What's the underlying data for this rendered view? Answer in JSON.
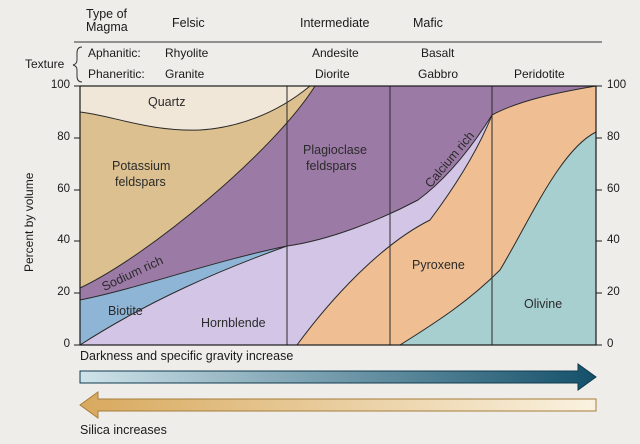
{
  "header": {
    "type_of_magma": "Type of Magma",
    "type_of_magma_line1": "Type of",
    "type_of_magma_line2": "Magma",
    "felsic": "Felsic",
    "intermediate": "Intermediate",
    "mafic": "Mafic"
  },
  "texture": {
    "label": "Texture",
    "aphanitic": {
      "label": "Aphanitic:",
      "felsic": "Rhyolite",
      "intermediate": "Andesite",
      "mafic": "Basalt"
    },
    "phaneritic": {
      "label": "Phaneritic:",
      "felsic": "Granite",
      "intermediate": "Diorite",
      "mafic": "Gabbro",
      "ultramafic": "Peridotite"
    }
  },
  "axis": {
    "ylabel": "Percent by volume",
    "ticks": [
      "0",
      "20",
      "40",
      "60",
      "80",
      "100"
    ]
  },
  "regions": {
    "quartz": "Quartz",
    "potassium_line1": "Potassium",
    "potassium_line2": "feldspars",
    "sodium": "Sodium rich",
    "plagioclase_line1": "Plagioclase",
    "plagioclase_line2": "feldspars",
    "calcium": "Calcium rich",
    "biotite": "Biotite",
    "hornblende": "Hornblende",
    "pyroxene": "Pyroxene",
    "olivine": "Olivine"
  },
  "arrows": {
    "darkness": "Darkness and specific gravity increase",
    "silica": "Silica increases"
  },
  "colors": {
    "quartz": "#f1e7d9",
    "potassium": "#dcc08f",
    "feldspar": "#9c7aa6",
    "biotite": "#8fb5d6",
    "hornblende": "#d2c5e6",
    "pyroxene": "#efbe93",
    "olivine": "#a8cfcf",
    "dark_arrow": "#1c5c73",
    "silica_arrow": "#d6b072"
  }
}
